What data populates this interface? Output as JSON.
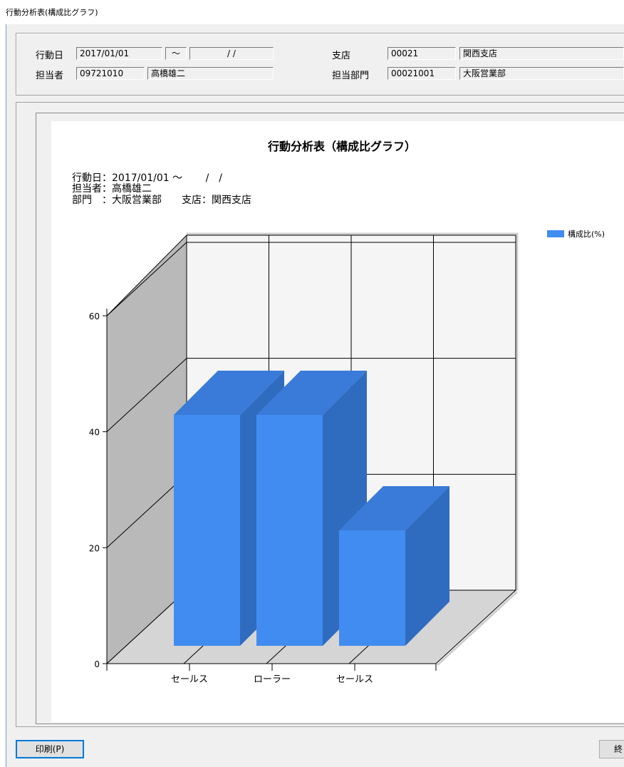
{
  "window": {
    "title": "行動分析表(構成比グラフ)"
  },
  "form": {
    "date_label": "行動日",
    "date_from": "2017/01/01",
    "tilde": "〜",
    "date_to": "/ /",
    "staff_label": "担当者",
    "staff_code": "09721010",
    "staff_name": "高橋雄二",
    "branch_label": "支店",
    "branch_code": "00021",
    "branch_name": "関西支店",
    "dept_label": "担当部門",
    "dept_code": "00021001",
    "dept_name": "大阪営業部"
  },
  "chart_info": {
    "line1": "行動日：2017/01/01 〜　　 /　/",
    "line2": "担当者：高橋雄二",
    "line3": "部門　：大阪営業部　　支店：関西支店"
  },
  "buttons": {
    "print": "印刷(P)",
    "exit": "終"
  },
  "chart_data": {
    "type": "bar",
    "title": "行動分析表（構成比グラフ）",
    "categories": [
      "セールス",
      "ローラー",
      "セールス"
    ],
    "series": [
      {
        "name": "構成比(%)",
        "values": [
          40,
          40,
          20
        ],
        "color": "#418cf0"
      }
    ],
    "ylim": [
      0,
      60
    ],
    "yticks": [
      0,
      20,
      40,
      60
    ],
    "grid": true,
    "legend": "top-right",
    "three_d": true
  }
}
